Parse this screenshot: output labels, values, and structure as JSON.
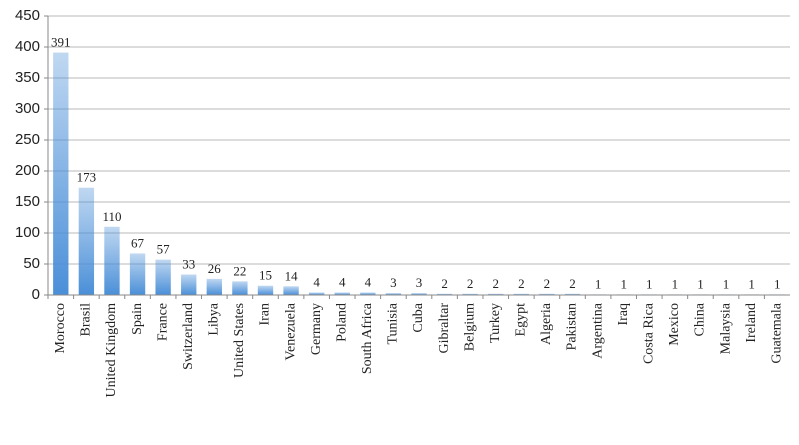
{
  "chart_data": {
    "type": "bar",
    "categories": [
      "Morocco",
      "Brasil",
      "United Kingdom",
      "Spain",
      "France",
      "Switzerland",
      "Libya",
      "United States",
      "Iran",
      "Venezuela",
      "Germany",
      "Poland",
      "South Africa",
      "Tunisia",
      "Cuba",
      "Gibraltar",
      "Belgium",
      "Turkey",
      "Egypt",
      "Algeria",
      "Pakistan",
      "Argentina",
      "Iraq",
      "Costa Rica",
      "Mexico",
      "China",
      "Malaysia",
      "Ireland",
      "Guatemala"
    ],
    "values": [
      391,
      173,
      110,
      67,
      57,
      33,
      26,
      22,
      15,
      14,
      4,
      4,
      4,
      3,
      3,
      2,
      2,
      2,
      2,
      2,
      2,
      1,
      1,
      1,
      1,
      1,
      1,
      1,
      1
    ],
    "color": "#4a8fd8",
    "ylim": [
      0,
      450
    ],
    "yticks": [
      0,
      50,
      100,
      150,
      200,
      250,
      300,
      350,
      400,
      450
    ],
    "grid": true
  }
}
